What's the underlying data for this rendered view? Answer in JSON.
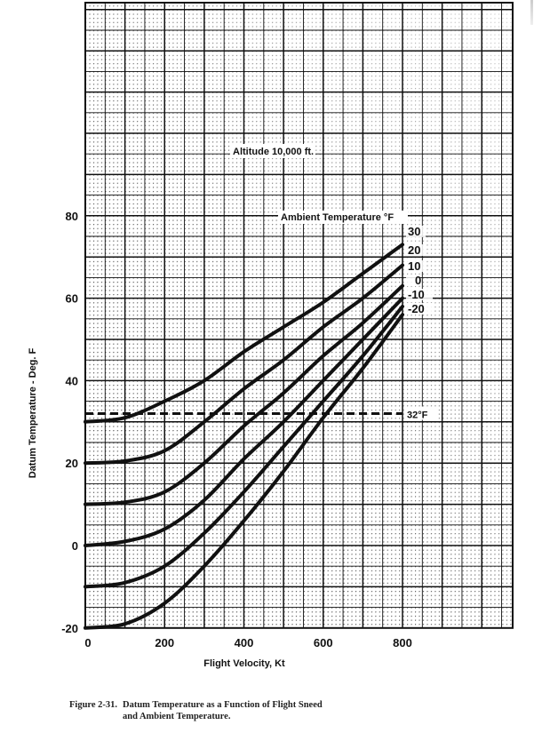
{
  "chart_data": {
    "type": "line",
    "title": "Altitude 10,000 ft.",
    "annotation_title": "Altitude 10,000 ft.",
    "xlabel": "Flight Velocity, Kt",
    "ylabel": "Datum Temperature - Deg. F",
    "legend_title": "Ambient Temperature °F",
    "xlim": [
      0,
      1080
    ],
    "ylim": [
      -20,
      131
    ],
    "x_ticks": [
      0,
      200,
      400,
      600,
      800
    ],
    "y_ticks": [
      -20,
      0,
      20,
      40,
      60,
      80
    ],
    "grid": true,
    "x": [
      0,
      100,
      200,
      300,
      400,
      500,
      600,
      700,
      800
    ],
    "series": [
      {
        "name": "30",
        "values": [
          30,
          31,
          35,
          40,
          47,
          53,
          59,
          66,
          73
        ]
      },
      {
        "name": "20",
        "values": [
          20,
          20.5,
          23,
          30,
          38,
          45,
          53,
          60,
          68
        ]
      },
      {
        "name": "10",
        "values": [
          10,
          10.5,
          13,
          20,
          29,
          37,
          46,
          54,
          63
        ]
      },
      {
        "name": "0",
        "values": [
          0,
          1,
          4,
          11,
          21,
          30,
          40,
          50,
          60
        ]
      },
      {
        "name": "-10",
        "values": [
          -10,
          -9,
          -5,
          3,
          13,
          24,
          35,
          46,
          58
        ]
      },
      {
        "name": "-20",
        "values": [
          -20,
          -19,
          -14,
          -5,
          6,
          18,
          31,
          43,
          56
        ]
      }
    ],
    "reference_lines": [
      {
        "label": "32°F",
        "y": 32,
        "style": "dashed",
        "x_range": [
          0,
          800
        ]
      }
    ]
  },
  "figure": {
    "number": "Figure 2-31.",
    "caption_line1": "Datum Temperature as a Function of Flight Sneed",
    "caption_line2": "and Ambient Temperature."
  },
  "colors": {
    "ink": "#111111",
    "grid_dense": "#333333",
    "paper": "#ffffff"
  }
}
